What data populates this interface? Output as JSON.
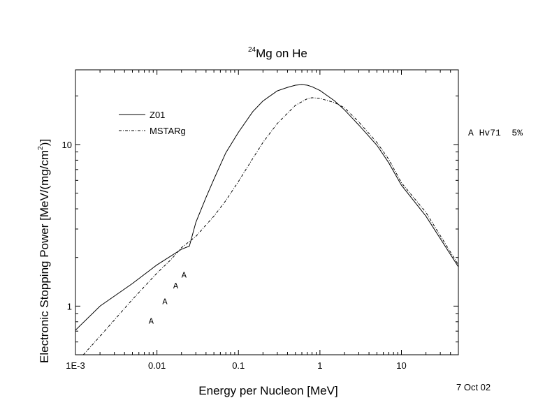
{
  "chart_data": {
    "type": "line",
    "title": "Mg on He",
    "title_superscript": "24",
    "xlabel": "Energy per Nucleon [MeV]",
    "ylabel": "Electronic Stopping Power [MeV/(mg/cm",
    "ylabel_superscript": "2",
    "ylabel_suffix": ")]",
    "x_scale": "log",
    "y_scale": "log",
    "xlim": [
      0.001,
      50
    ],
    "ylim": [
      0.5,
      29
    ],
    "x_ticks": [
      {
        "value": 0.001,
        "label": "1E-3"
      },
      {
        "value": 0.01,
        "label": "0.01"
      },
      {
        "value": 0.1,
        "label": "0.1"
      },
      {
        "value": 1,
        "label": "1"
      },
      {
        "value": 10,
        "label": "10"
      }
    ],
    "y_ticks": [
      {
        "value": 1,
        "label": "1"
      },
      {
        "value": 10,
        "label": "10"
      }
    ],
    "legend_position": "top-left",
    "series": [
      {
        "name": "Z01",
        "style": "solid",
        "x": [
          0.001,
          0.002,
          0.005,
          0.01,
          0.015,
          0.02,
          0.025,
          0.03,
          0.04,
          0.05,
          0.07,
          0.1,
          0.15,
          0.2,
          0.3,
          0.4,
          0.5,
          0.6,
          0.7,
          0.8,
          1,
          1.5,
          2,
          3,
          5,
          7,
          10,
          20,
          50
        ],
        "y": [
          0.71,
          1.0,
          1.38,
          1.8,
          2.05,
          2.25,
          2.35,
          3.3,
          4.7,
          6.1,
          8.9,
          11.9,
          16.0,
          18.6,
          21.5,
          22.6,
          23.3,
          23.5,
          23.3,
          22.8,
          21.6,
          18.7,
          16.4,
          13.2,
          9.9,
          7.7,
          5.6,
          3.6,
          1.75
        ]
      },
      {
        "name": "MSTARg",
        "style": "dash-dot",
        "x": [
          0.00125,
          0.002,
          0.003,
          0.005,
          0.007,
          0.01,
          0.015,
          0.02,
          0.03,
          0.05,
          0.07,
          0.1,
          0.15,
          0.2,
          0.3,
          0.5,
          0.7,
          0.8,
          1,
          1.5,
          2,
          3,
          5,
          7,
          10,
          20,
          50
        ],
        "y": [
          0.5,
          0.65,
          0.82,
          1.1,
          1.32,
          1.6,
          1.95,
          2.3,
          2.7,
          3.6,
          4.5,
          5.9,
          8.2,
          10.3,
          13.5,
          17.5,
          19.2,
          19.5,
          19.3,
          18.2,
          16.9,
          13.8,
          10.3,
          8.1,
          5.8,
          3.8,
          1.8
        ]
      },
      {
        "name": "A",
        "style": "letter-marker",
        "marker": "A",
        "x": [
          0.0085,
          0.0125,
          0.017,
          0.0215
        ],
        "y": [
          0.82,
          1.08,
          1.35,
          1.58
        ]
      }
    ]
  },
  "right_note": "A Hv71  5%",
  "date_stamp": "7 Oct 02"
}
